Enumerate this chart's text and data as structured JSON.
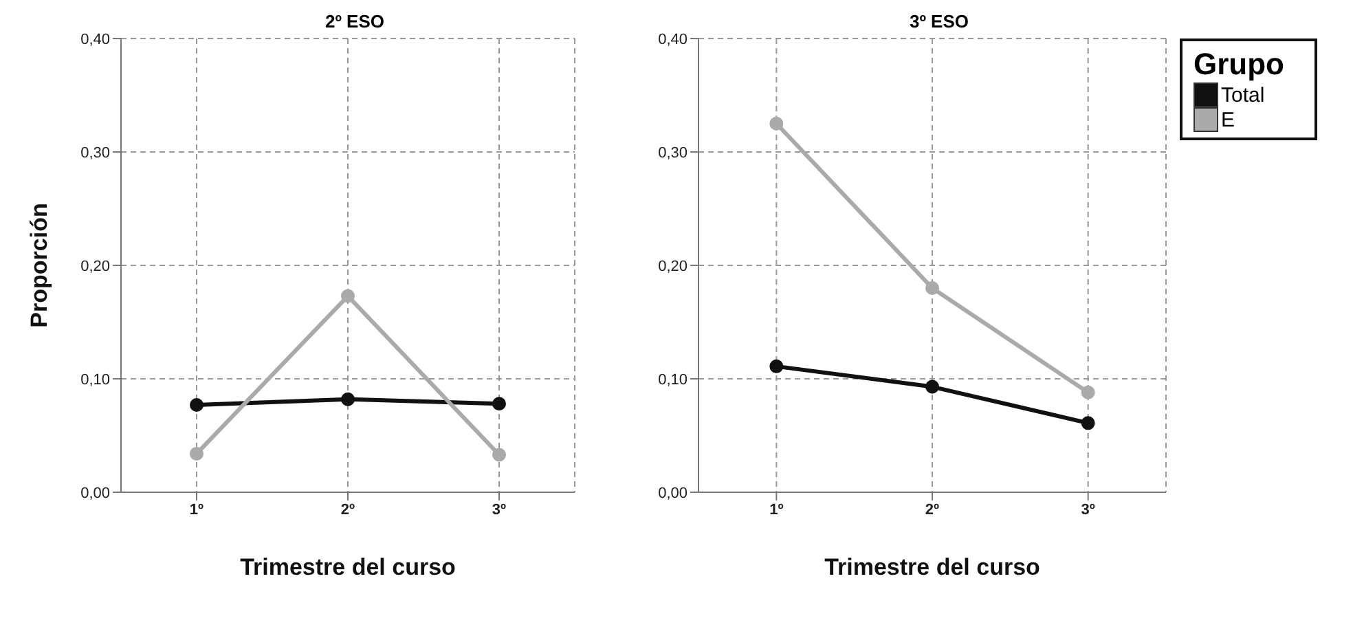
{
  "chart_data": [
    {
      "type": "line",
      "title": "2º ESO",
      "xlabel": "Trimestre del curso",
      "ylabel": "Proporción",
      "categories": [
        "1º",
        "2º",
        "3º"
      ],
      "series": [
        {
          "color": "#111111",
          "values": [
            0.077,
            0.082,
            0.078
          ]
        },
        {
          "color": "#aaaaaa",
          "values": [
            0.034,
            0.173,
            0.033
          ]
        }
      ],
      "ylim": [
        0,
        0.4
      ],
      "yticks": [
        {
          "value": 0,
          "label": "0,00"
        },
        {
          "value": 0.1,
          "label": "0,10"
        },
        {
          "value": 0.2,
          "label": "0,20"
        },
        {
          "value": 0.3,
          "label": "0,30"
        },
        {
          "value": 0.4,
          "label": "0,40"
        }
      ],
      "grid": true,
      "marker": "circle",
      "line_style": "solid",
      "legend": false
    },
    {
      "type": "line",
      "title": "3º ESO",
      "xlabel": "Trimestre del curso",
      "legend_title": "Grupo",
      "categories": [
        "1º",
        "2º",
        "3º"
      ],
      "series": [
        {
          "name": "Total",
          "color": "#111111",
          "values": [
            0.111,
            0.093,
            0.061
          ]
        },
        {
          "name": "E",
          "color": "#aaaaaa",
          "values": [
            0.325,
            0.18,
            0.088
          ]
        }
      ],
      "ylim": [
        0,
        0.4
      ],
      "yticks": [
        {
          "value": 0,
          "label": "0,00"
        },
        {
          "value": 0.1,
          "label": "0,10"
        },
        {
          "value": 0.2,
          "label": "0,20"
        },
        {
          "value": 0.3,
          "label": "0,30"
        },
        {
          "value": 0.4,
          "label": "0,40"
        }
      ],
      "grid": true,
      "marker": "circle",
      "line_style": "solid",
      "legend": "right"
    }
  ]
}
